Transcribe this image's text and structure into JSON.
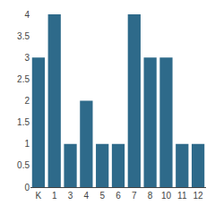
{
  "chart_data": {
    "type": "bar",
    "categories": [
      "K",
      "1",
      "3",
      "4",
      "5",
      "6",
      "7",
      "8",
      "10",
      "11",
      "12"
    ],
    "values": [
      3,
      4,
      1,
      2,
      1,
      1,
      4,
      3,
      3,
      1,
      1
    ],
    "color": "#2e6a8a",
    "ylim": [
      0,
      4
    ],
    "yticks": [
      0,
      0.5,
      1,
      1.5,
      2,
      2.5,
      3,
      3.5,
      4
    ],
    "grid": false
  }
}
